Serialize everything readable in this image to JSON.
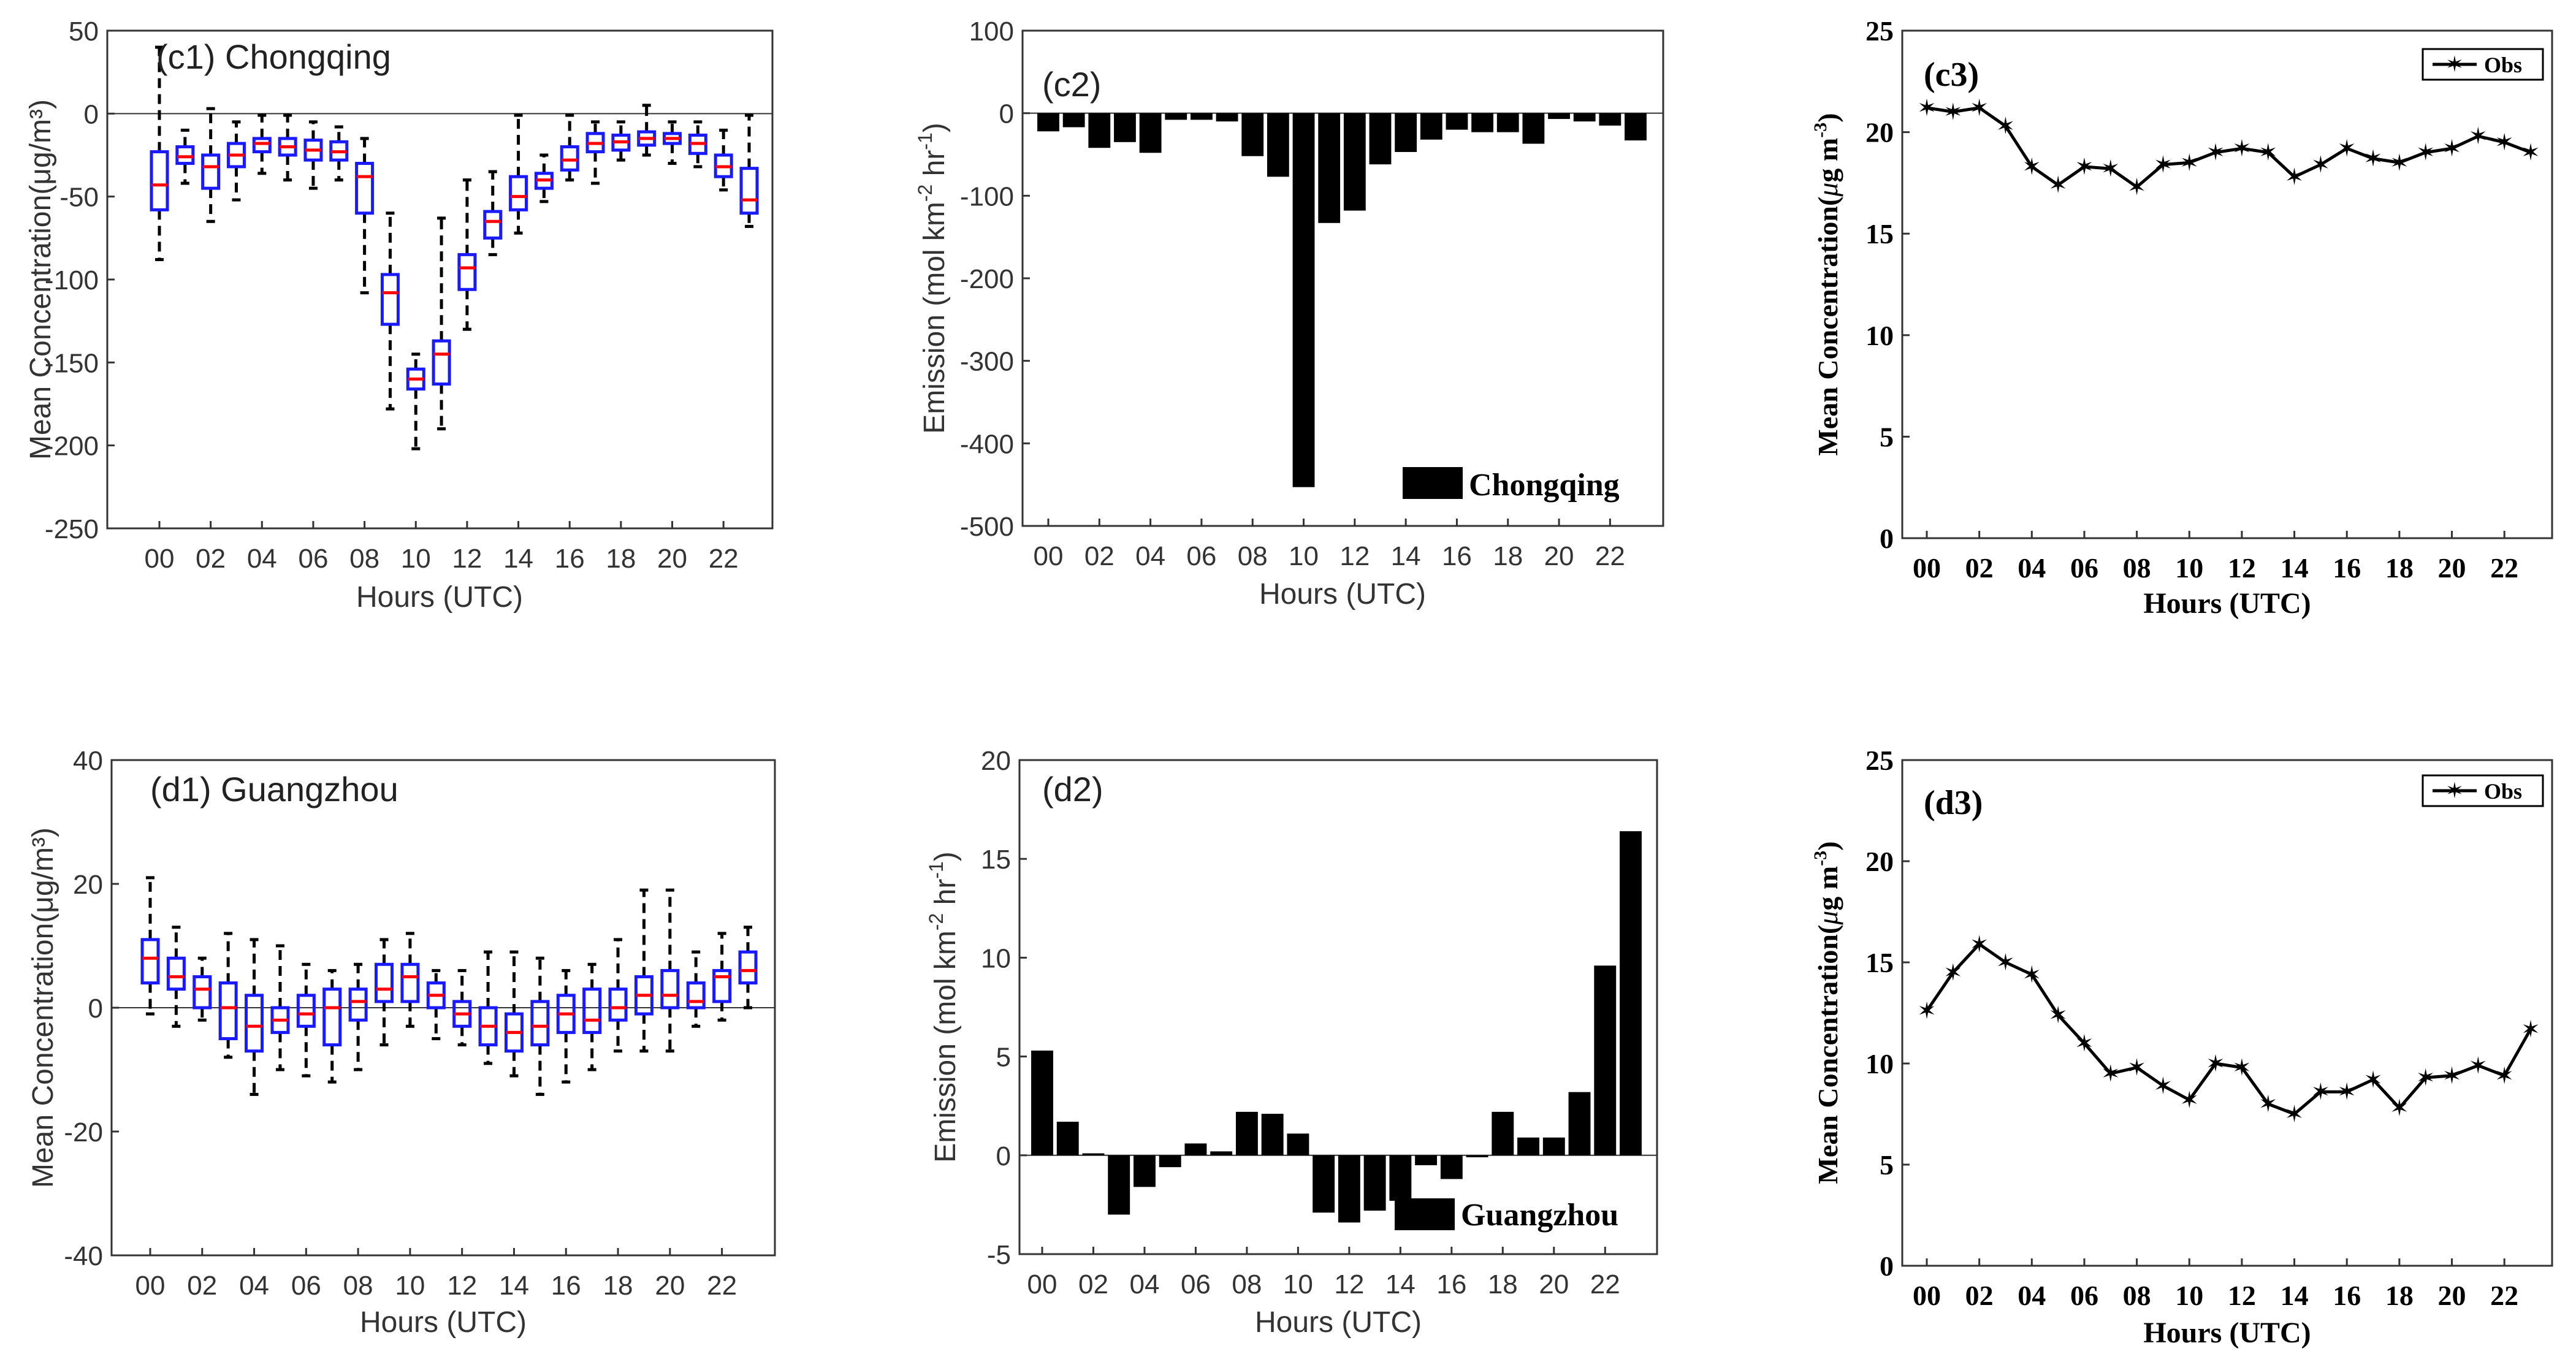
{
  "hour_ticks": [
    "00",
    "02",
    "04",
    "06",
    "08",
    "10",
    "12",
    "14",
    "16",
    "18",
    "20",
    "22"
  ],
  "chart_data": [
    {
      "id": "c1",
      "type": "box",
      "title": "(c1) Chongqing",
      "xlabel": "Hours (UTC)",
      "ylabel": "Mean Concentration(μg/m³)",
      "ylim": [
        -250,
        50
      ],
      "yticks": [
        "50",
        "0",
        "-50",
        "-100",
        "-150",
        "-200",
        "-250"
      ],
      "y_tick_values": [
        50,
        0,
        -50,
        -100,
        -150,
        -200,
        -250
      ],
      "colors": {
        "box": "#1a1aff",
        "median": "#ff0000",
        "whisker": "#000000"
      },
      "boxes": [
        {
          "hour": 0,
          "wlo": -88,
          "q1": -58,
          "med": -43,
          "q3": -23,
          "whi": 40
        },
        {
          "hour": 1,
          "wlo": -42,
          "q1": -30,
          "med": -26,
          "q3": -20,
          "whi": -10
        },
        {
          "hour": 2,
          "wlo": -65,
          "q1": -45,
          "med": -32,
          "q3": -25,
          "whi": 3
        },
        {
          "hour": 3,
          "wlo": -52,
          "q1": -32,
          "med": -25,
          "q3": -18,
          "whi": -5
        },
        {
          "hour": 4,
          "wlo": -36,
          "q1": -23,
          "med": -18,
          "q3": -15,
          "whi": -1
        },
        {
          "hour": 5,
          "wlo": -40,
          "q1": -25,
          "med": -20,
          "q3": -15,
          "whi": -1
        },
        {
          "hour": 6,
          "wlo": -45,
          "q1": -28,
          "med": -22,
          "q3": -16,
          "whi": -5
        },
        {
          "hour": 7,
          "wlo": -40,
          "q1": -28,
          "med": -23,
          "q3": -17,
          "whi": -8
        },
        {
          "hour": 8,
          "wlo": -108,
          "q1": -60,
          "med": -38,
          "q3": -30,
          "whi": -15
        },
        {
          "hour": 9,
          "wlo": -178,
          "q1": -127,
          "med": -108,
          "q3": -97,
          "whi": -60
        },
        {
          "hour": 10,
          "wlo": -202,
          "q1": -166,
          "med": -160,
          "q3": -154,
          "whi": -145
        },
        {
          "hour": 11,
          "wlo": -190,
          "q1": -163,
          "med": -145,
          "q3": -137,
          "whi": -63
        },
        {
          "hour": 12,
          "wlo": -130,
          "q1": -106,
          "med": -93,
          "q3": -85,
          "whi": -40
        },
        {
          "hour": 13,
          "wlo": -85,
          "q1": -75,
          "med": -65,
          "q3": -59,
          "whi": -35
        },
        {
          "hour": 14,
          "wlo": -72,
          "q1": -58,
          "med": -50,
          "q3": -38,
          "whi": -1
        },
        {
          "hour": 15,
          "wlo": -53,
          "q1": -45,
          "med": -40,
          "q3": -36,
          "whi": -25
        },
        {
          "hour": 16,
          "wlo": -40,
          "q1": -34,
          "med": -28,
          "q3": -20,
          "whi": -1
        },
        {
          "hour": 17,
          "wlo": -42,
          "q1": -23,
          "med": -18,
          "q3": -12,
          "whi": -5
        },
        {
          "hour": 18,
          "wlo": -28,
          "q1": -22,
          "med": -17,
          "q3": -13,
          "whi": -5
        },
        {
          "hour": 19,
          "wlo": -25,
          "q1": -19,
          "med": -15,
          "q3": -11,
          "whi": 5
        },
        {
          "hour": 20,
          "wlo": -30,
          "q1": -18,
          "med": -15,
          "q3": -12,
          "whi": -5
        },
        {
          "hour": 21,
          "wlo": -32,
          "q1": -24,
          "med": -18,
          "q3": -13,
          "whi": -5
        },
        {
          "hour": 22,
          "wlo": -46,
          "q1": -38,
          "med": -32,
          "q3": -25,
          "whi": -10
        },
        {
          "hour": 23,
          "wlo": -68,
          "q1": -60,
          "med": -52,
          "q3": -33,
          "whi": -1
        }
      ]
    },
    {
      "id": "c2",
      "type": "bar",
      "title": "(c2)",
      "legend": "Chongqing",
      "xlabel": "Hours (UTC)",
      "ylabel_main": "Emission (mol km",
      "ylabel_sup1": "-2",
      "ylabel_mid": " hr",
      "ylabel_sup2": "-1",
      "ylabel_end": ")",
      "ylim": [
        -500,
        100
      ],
      "yticks": [
        "100",
        "0",
        "-100",
        "-200",
        "-300",
        "-400",
        "-500"
      ],
      "y_tick_values": [
        100,
        0,
        -100,
        -200,
        -300,
        -400,
        -500
      ],
      "values": [
        -22,
        -17,
        -42,
        -35,
        -48,
        -8,
        -8,
        -10,
        -52,
        -77,
        -453,
        -133,
        -118,
        -62,
        -47,
        -32,
        -20,
        -23,
        -23,
        -37,
        -7,
        -10,
        -15,
        -33
      ]
    },
    {
      "id": "c3",
      "type": "line",
      "title": "(c3)",
      "legend": "Obs",
      "xlabel": "Hours (UTC)",
      "ylabel_main": "Mean Concentration(",
      "ylabel_mu": "μ",
      "ylabel_g": "g m",
      "ylabel_sup": "-3",
      "ylabel_end": ")",
      "ylim": [
        0,
        25
      ],
      "yticks": [
        "25",
        "20",
        "15",
        "10",
        "5",
        "0"
      ],
      "y_tick_values": [
        25,
        20,
        15,
        10,
        5,
        0
      ],
      "values": [
        21.2,
        21.0,
        21.2,
        20.3,
        18.3,
        17.4,
        18.3,
        18.2,
        17.3,
        18.4,
        18.5,
        19.0,
        19.2,
        19.0,
        17.8,
        18.4,
        19.2,
        18.7,
        18.5,
        19.0,
        19.2,
        19.8,
        19.5,
        19.0
      ]
    },
    {
      "id": "d1",
      "type": "box",
      "title": "(d1) Guangzhou",
      "xlabel": "Hours (UTC)",
      "ylabel": "Mean Concentration(μg/m³)",
      "ylim": [
        -40,
        40
      ],
      "yticks": [
        "40",
        "20",
        "0",
        "-20",
        "-40"
      ],
      "y_tick_values": [
        40,
        20,
        0,
        -20,
        -40
      ],
      "colors": {
        "box": "#1a1aff",
        "median": "#ff0000",
        "whisker": "#000000"
      },
      "boxes": [
        {
          "hour": 0,
          "wlo": -1,
          "q1": 4,
          "med": 8,
          "q3": 11,
          "whi": 21
        },
        {
          "hour": 1,
          "wlo": -3,
          "q1": 3,
          "med": 5,
          "q3": 8,
          "whi": 13
        },
        {
          "hour": 2,
          "wlo": -2,
          "q1": 0,
          "med": 3,
          "q3": 5,
          "whi": 8
        },
        {
          "hour": 3,
          "wlo": -8,
          "q1": -5,
          "med": 0,
          "q3": 4,
          "whi": 12
        },
        {
          "hour": 4,
          "wlo": -14,
          "q1": -7,
          "med": -3,
          "q3": 2,
          "whi": 11
        },
        {
          "hour": 5,
          "wlo": -10,
          "q1": -4,
          "med": -2,
          "q3": 0,
          "whi": 10
        },
        {
          "hour": 6,
          "wlo": -11,
          "q1": -3,
          "med": -1,
          "q3": 2,
          "whi": 7
        },
        {
          "hour": 7,
          "wlo": -12,
          "q1": -6,
          "med": 0,
          "q3": 3,
          "whi": 6
        },
        {
          "hour": 8,
          "wlo": -10,
          "q1": -2,
          "med": 1,
          "q3": 3,
          "whi": 7
        },
        {
          "hour": 9,
          "wlo": -6,
          "q1": 1,
          "med": 3,
          "q3": 7,
          "whi": 11
        },
        {
          "hour": 10,
          "wlo": -3,
          "q1": 1,
          "med": 5,
          "q3": 7,
          "whi": 12
        },
        {
          "hour": 11,
          "wlo": -5,
          "q1": 0,
          "med": 2,
          "q3": 4,
          "whi": 6
        },
        {
          "hour": 12,
          "wlo": -6,
          "q1": -3,
          "med": -1,
          "q3": 1,
          "whi": 6
        },
        {
          "hour": 13,
          "wlo": -9,
          "q1": -6,
          "med": -3,
          "q3": 0,
          "whi": 9
        },
        {
          "hour": 14,
          "wlo": -11,
          "q1": -7,
          "med": -4,
          "q3": -1,
          "whi": 9
        },
        {
          "hour": 15,
          "wlo": -14,
          "q1": -6,
          "med": -3,
          "q3": 1,
          "whi": 8
        },
        {
          "hour": 16,
          "wlo": -12,
          "q1": -4,
          "med": -1,
          "q3": 2,
          "whi": 6
        },
        {
          "hour": 17,
          "wlo": -10,
          "q1": -4,
          "med": -2,
          "q3": 3,
          "whi": 7
        },
        {
          "hour": 18,
          "wlo": -7,
          "q1": -2,
          "med": 0,
          "q3": 3,
          "whi": 11
        },
        {
          "hour": 19,
          "wlo": -7,
          "q1": -1,
          "med": 2,
          "q3": 5,
          "whi": 19
        },
        {
          "hour": 20,
          "wlo": -7,
          "q1": 0,
          "med": 2,
          "q3": 6,
          "whi": 19
        },
        {
          "hour": 21,
          "wlo": -3,
          "q1": 0,
          "med": 1,
          "q3": 4,
          "whi": 9
        },
        {
          "hour": 22,
          "wlo": -2,
          "q1": 1,
          "med": 5,
          "q3": 6,
          "whi": 12
        },
        {
          "hour": 23,
          "wlo": 0,
          "q1": 4,
          "med": 6,
          "q3": 9,
          "whi": 13
        }
      ]
    },
    {
      "id": "d2",
      "type": "bar",
      "title": "(d2)",
      "legend": "Guangzhou",
      "xlabel": "Hours (UTC)",
      "ylabel_main": "Emission (mol km",
      "ylabel_sup1": "-2",
      "ylabel_mid": " hr",
      "ylabel_sup2": "-1",
      "ylabel_end": ")",
      "ylim": [
        -5,
        20
      ],
      "yticks": [
        "20",
        "15",
        "10",
        "5",
        "0",
        "-5"
      ],
      "y_tick_values": [
        20,
        15,
        10,
        5,
        0,
        -5
      ],
      "values": [
        5.3,
        1.7,
        0.1,
        -3.0,
        -1.6,
        -0.6,
        0.6,
        0.2,
        2.2,
        2.1,
        1.1,
        -2.9,
        -3.4,
        -2.8,
        -2.3,
        -0.5,
        -1.2,
        -0.1,
        2.2,
        0.9,
        0.9,
        3.2,
        9.6,
        16.4
      ]
    },
    {
      "id": "d3",
      "type": "line",
      "title": "(d3)",
      "legend": "Obs",
      "xlabel": "Hours (UTC)",
      "ylabel_main": "Mean Concentration(",
      "ylabel_mu": "μ",
      "ylabel_g": "g m",
      "ylabel_sup": "-3",
      "ylabel_end": ")",
      "ylim": [
        0,
        25
      ],
      "yticks": [
        "25",
        "20",
        "15",
        "10",
        "5",
        "0"
      ],
      "y_tick_values": [
        25,
        20,
        15,
        10,
        5,
        0
      ],
      "values": [
        12.6,
        14.5,
        15.9,
        15.0,
        14.4,
        12.4,
        11.0,
        9.5,
        9.8,
        8.9,
        8.2,
        10.0,
        9.8,
        8.0,
        7.5,
        8.6,
        8.6,
        9.2,
        7.8,
        9.3,
        9.4,
        9.9,
        9.4,
        11.7
      ]
    }
  ]
}
